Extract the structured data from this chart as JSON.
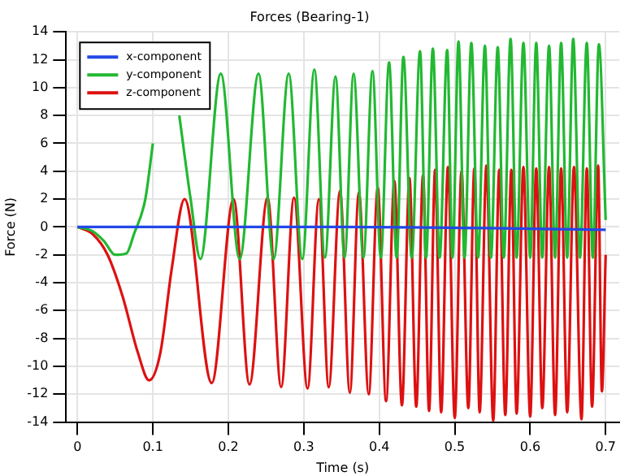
{
  "chart_data": {
    "type": "line",
    "title": "Forces (Bearing-1)",
    "xlabel": "Time (s)",
    "ylabel": "Force (N)",
    "xlim": [
      -0.015,
      0.718
    ],
    "xticks": [
      0,
      0.1,
      0.2,
      0.3,
      0.4,
      0.5,
      0.6,
      0.7
    ],
    "ylim": [
      -14,
      14
    ],
    "yticks": [
      -14,
      -12,
      -10,
      -8,
      -6,
      -4,
      -2,
      0,
      2,
      4,
      6,
      8,
      10,
      12,
      14
    ],
    "grid": true,
    "legend": "top left",
    "marker": "none",
    "line_style": "solid",
    "series": [
      {
        "name": "x-component",
        "color": "#2347e6",
        "x": [
          0,
          0.35,
          0.7
        ],
        "values": [
          0,
          0,
          -0.2
        ]
      },
      {
        "name": "y-component",
        "color": "#22b832",
        "x": [
          0,
          0.02,
          0.035,
          0.05,
          0.065,
          0.075,
          0.09,
          0.1,
          0.11,
          0.122,
          0.135,
          0.15,
          0.163,
          0.19,
          0.215,
          0.24,
          0.26,
          0.28,
          0.298,
          0.314,
          0.328,
          0.342,
          0.354,
          0.366,
          0.379,
          0.391,
          0.402,
          0.413,
          0.423,
          0.432,
          0.443,
          0.454,
          0.462,
          0.471,
          0.48,
          0.49,
          0.497,
          0.505,
          0.513,
          0.522,
          0.531,
          0.54,
          0.548,
          0.557,
          0.565,
          0.574,
          0.582,
          0.591,
          0.6,
          0.608,
          0.616,
          0.625,
          0.633,
          0.641,
          0.649,
          0.657,
          0.666,
          0.675,
          0.683,
          0.691,
          0.7
        ],
        "values": [
          0,
          -0.3,
          -1,
          -2,
          -1.9,
          -0.5,
          2,
          6,
          null,
          null,
          8,
          2,
          -2.3,
          11,
          -2.3,
          11,
          -2.3,
          11,
          -2.3,
          11.3,
          -2.2,
          10.8,
          -2.2,
          11,
          -2.2,
          11.2,
          -2.2,
          11.8,
          -2.2,
          12.2,
          -2.2,
          12.6,
          -2.2,
          12.8,
          -2.2,
          12.7,
          -2.2,
          13.3,
          -2.2,
          13.2,
          -2.2,
          13,
          -2.2,
          12.9,
          -2.2,
          13.5,
          -2.2,
          13.2,
          -2.2,
          13.2,
          -2.2,
          13,
          -2.2,
          13.2,
          -2.2,
          13.5,
          -2.2,
          13.2,
          -2.2,
          13.1,
          0.5
        ]
      },
      {
        "name": "z-component",
        "color": "#dd1111",
        "x": [
          0,
          0.02,
          0.04,
          0.06,
          0.08,
          0.095,
          0.11,
          0.125,
          0.142,
          0.178,
          0.207,
          0.228,
          0.252,
          0.27,
          0.287,
          0.305,
          0.32,
          0.333,
          0.348,
          0.361,
          0.373,
          0.386,
          0.398,
          0.409,
          0.42,
          0.43,
          0.44,
          0.449,
          0.458,
          0.466,
          0.474,
          0.482,
          0.491,
          0.5,
          0.509,
          0.518,
          0.526,
          0.533,
          0.542,
          0.551,
          0.559,
          0.567,
          0.575,
          0.582,
          0.591,
          0.6,
          0.608,
          0.616,
          0.625,
          0.633,
          0.641,
          0.649,
          0.658,
          0.668,
          0.675,
          0.682,
          0.69,
          0.695,
          0.7
        ],
        "values": [
          0,
          -0.5,
          -2,
          -5,
          -9,
          -11,
          -9,
          -3,
          2,
          -11.2,
          2,
          -11.3,
          2.1,
          -11.5,
          2.1,
          -11.6,
          2,
          -11.5,
          2.6,
          -11.9,
          2.5,
          -12,
          2.8,
          -12.5,
          3.3,
          -12.8,
          3.5,
          -12.9,
          3.7,
          -13.2,
          4.1,
          -13.3,
          4.3,
          -13.7,
          4,
          -13,
          4.2,
          -13.3,
          4.4,
          -13.9,
          4.1,
          -13.5,
          4.1,
          -13.4,
          4.3,
          -13.6,
          4.2,
          -13,
          4.3,
          -13.5,
          4.2,
          -13.3,
          4.3,
          -13.8,
          4.2,
          -12.9,
          4.4,
          -11.8,
          -2
        ]
      }
    ]
  }
}
